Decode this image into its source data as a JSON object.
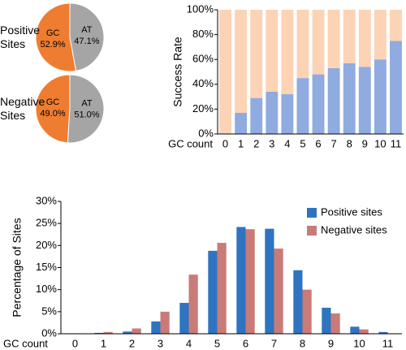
{
  "chart_data": [
    {
      "type": "pie",
      "title": "Positive Sites",
      "categories": [
        "GC",
        "AT"
      ],
      "values": [
        52.9,
        47.1
      ],
      "value_labels": [
        "52.9%",
        "47.1%"
      ],
      "colors": [
        "#ef7d31",
        "#a5a5a5"
      ]
    },
    {
      "type": "pie",
      "title": "Negative Sites",
      "categories": [
        "GC",
        "AT"
      ],
      "values": [
        49.0,
        51.0
      ],
      "value_labels": [
        "49.0%",
        "51.0%"
      ],
      "colors": [
        "#ef7d31",
        "#a5a5a5"
      ]
    },
    {
      "type": "bar",
      "stacked": true,
      "y_label": "Success Rate",
      "x_label": "GC count",
      "categories": [
        "0",
        "1",
        "2",
        "3",
        "4",
        "5",
        "6",
        "7",
        "8",
        "9",
        "10",
        "11"
      ],
      "series": [
        {
          "color": "#8fabe0",
          "values": [
            0,
            17,
            29,
            34,
            32,
            45,
            48,
            53,
            57,
            54,
            60,
            75
          ]
        },
        {
          "color": "#fcd3b5",
          "values": [
            100,
            83,
            71,
            66,
            68,
            55,
            52,
            47,
            43,
            46,
            40,
            25
          ]
        }
      ],
      "ylim": [
        0,
        100
      ],
      "yticks": [
        {
          "value": 0,
          "label": "0%"
        },
        {
          "value": 20,
          "label": "20%"
        },
        {
          "value": 40,
          "label": "40%"
        },
        {
          "value": 60,
          "label": "60%"
        },
        {
          "value": 80,
          "label": "80%"
        },
        {
          "value": 100,
          "label": "100%"
        }
      ]
    },
    {
      "type": "bar",
      "stacked": false,
      "y_label": "Percentage of Sites",
      "x_label": "GC count",
      "legend": "top-right",
      "categories": [
        "0",
        "1",
        "2",
        "3",
        "4",
        "5",
        "6",
        "7",
        "8",
        "9",
        "10",
        "11"
      ],
      "series": [
        {
          "name": "Positive sites",
          "color": "#2e74c0",
          "values": [
            0.1,
            0.2,
            0.5,
            2.8,
            7.0,
            18.8,
            24.2,
            23.8,
            14.4,
            5.9,
            1.6,
            0.4
          ]
        },
        {
          "name": "Negative sites",
          "color": "#c97b78",
          "values": [
            0.1,
            0.4,
            1.2,
            5.0,
            13.4,
            20.6,
            23.7,
            19.3,
            10.0,
            4.6,
            1.0,
            0.1
          ]
        }
      ],
      "ylim": [
        0,
        30
      ],
      "yticks": [
        {
          "value": 0,
          "label": "0%"
        },
        {
          "value": 5,
          "label": "5%"
        },
        {
          "value": 10,
          "label": "10%"
        },
        {
          "value": 15,
          "label": "15%"
        },
        {
          "value": 20,
          "label": "20%"
        },
        {
          "value": 25,
          "label": "25%"
        },
        {
          "value": 30,
          "label": "30%"
        }
      ]
    }
  ]
}
